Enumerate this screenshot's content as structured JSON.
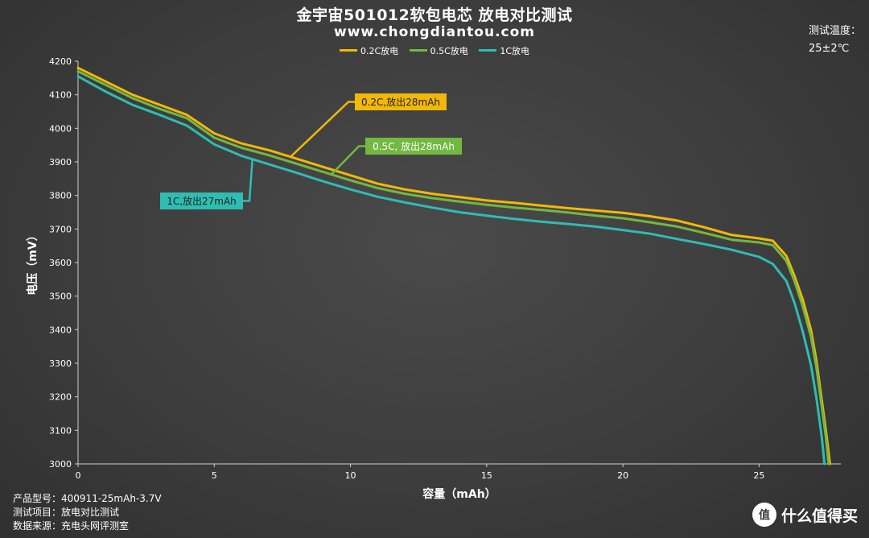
{
  "header": {
    "title": "金宇宙501012软包电芯 放电对比测试",
    "subtitle": "www.chongdiantou.com",
    "temp_label": "测试温度：",
    "temp_value": "25±2℃"
  },
  "footer": {
    "rows": [
      {
        "label": "产品型号：",
        "value": "400911-25mAh-3.7V"
      },
      {
        "label": "测试项目：",
        "value": "放电对比测试"
      },
      {
        "label": "数据来源：",
        "value": "充电头网评测室"
      }
    ],
    "watermark_badge": "值",
    "watermark_text": "什么值得买"
  },
  "chart_data": {
    "type": "line",
    "xlabel": "容量（mAh）",
    "ylabel": "电压（mV）",
    "xlim": [
      0,
      28
    ],
    "ylim": [
      3000,
      4200
    ],
    "x_ticks": [
      0,
      5,
      10,
      15,
      20,
      25
    ],
    "y_ticks": [
      3000,
      3100,
      3200,
      3300,
      3400,
      3500,
      3600,
      3700,
      3800,
      3900,
      4000,
      4100,
      4200
    ],
    "grid": false,
    "legend_position": "top-center",
    "series": [
      {
        "name": "0.2C放电",
        "color": "#f2b807",
        "points": [
          [
            0,
            4180
          ],
          [
            1,
            4140
          ],
          [
            2,
            4100
          ],
          [
            3,
            4070
          ],
          [
            4,
            4040
          ],
          [
            5,
            3985
          ],
          [
            6,
            3955
          ],
          [
            7,
            3935
          ],
          [
            8,
            3910
          ],
          [
            9,
            3885
          ],
          [
            10,
            3860
          ],
          [
            11,
            3835
          ],
          [
            12,
            3818
          ],
          [
            13,
            3805
          ],
          [
            14,
            3795
          ],
          [
            15,
            3785
          ],
          [
            16,
            3778
          ],
          [
            17,
            3770
          ],
          [
            18,
            3762
          ],
          [
            19,
            3755
          ],
          [
            20,
            3748
          ],
          [
            21,
            3738
          ],
          [
            22,
            3725
          ],
          [
            23,
            3705
          ],
          [
            24,
            3682
          ],
          [
            25,
            3672
          ],
          [
            25.5,
            3665
          ],
          [
            26,
            3620
          ],
          [
            26.3,
            3560
          ],
          [
            26.6,
            3490
          ],
          [
            26.9,
            3400
          ],
          [
            27.1,
            3310
          ],
          [
            27.3,
            3190
          ],
          [
            27.45,
            3100
          ],
          [
            27.6,
            3000
          ]
        ]
      },
      {
        "name": "0.5C放电",
        "color": "#73b841",
        "points": [
          [
            0,
            4170
          ],
          [
            1,
            4130
          ],
          [
            2,
            4090
          ],
          [
            3,
            4058
          ],
          [
            4,
            4030
          ],
          [
            5,
            3972
          ],
          [
            6,
            3942
          ],
          [
            7,
            3920
          ],
          [
            8,
            3895
          ],
          [
            9,
            3870
          ],
          [
            10,
            3845
          ],
          [
            11,
            3822
          ],
          [
            12,
            3805
          ],
          [
            13,
            3792
          ],
          [
            14,
            3782
          ],
          [
            15,
            3772
          ],
          [
            16,
            3764
          ],
          [
            17,
            3757
          ],
          [
            18,
            3749
          ],
          [
            19,
            3740
          ],
          [
            20,
            3732
          ],
          [
            21,
            3720
          ],
          [
            22,
            3707
          ],
          [
            23,
            3688
          ],
          [
            24,
            3668
          ],
          [
            25,
            3660
          ],
          [
            25.5,
            3652
          ],
          [
            26,
            3605
          ],
          [
            26.3,
            3545
          ],
          [
            26.6,
            3470
          ],
          [
            26.9,
            3380
          ],
          [
            27.1,
            3290
          ],
          [
            27.3,
            3170
          ],
          [
            27.45,
            3080
          ],
          [
            27.55,
            3000
          ]
        ]
      },
      {
        "name": "1C放电",
        "color": "#2ebdb3",
        "points": [
          [
            0,
            4155
          ],
          [
            1,
            4110
          ],
          [
            2,
            4070
          ],
          [
            3,
            4040
          ],
          [
            4,
            4008
          ],
          [
            5,
            3952
          ],
          [
            6,
            3918
          ],
          [
            7,
            3893
          ],
          [
            8,
            3868
          ],
          [
            9,
            3842
          ],
          [
            10,
            3818
          ],
          [
            11,
            3796
          ],
          [
            12,
            3779
          ],
          [
            13,
            3764
          ],
          [
            14,
            3750
          ],
          [
            15,
            3740
          ],
          [
            16,
            3730
          ],
          [
            17,
            3722
          ],
          [
            18,
            3715
          ],
          [
            19,
            3707
          ],
          [
            20,
            3697
          ],
          [
            21,
            3686
          ],
          [
            22,
            3670
          ],
          [
            23,
            3655
          ],
          [
            24,
            3638
          ],
          [
            25,
            3617
          ],
          [
            25.5,
            3596
          ],
          [
            26,
            3545
          ],
          [
            26.3,
            3480
          ],
          [
            26.6,
            3395
          ],
          [
            26.9,
            3295
          ],
          [
            27.1,
            3200
          ],
          [
            27.3,
            3080
          ],
          [
            27.4,
            3000
          ]
        ]
      }
    ],
    "annotations": [
      {
        "text": "0.2C,放出28mAh",
        "bg": "#f2b807",
        "fg": "#222222",
        "series": 0,
        "x_anchor": 7.8
      },
      {
        "text": "0.5C, 放出28mAh",
        "bg": "#73b841",
        "fg": "#ffffff",
        "series": 1,
        "x_anchor": 9.3
      },
      {
        "text": "1C,放出27mAh",
        "bg": "#2ebdb3",
        "fg": "#222222",
        "series": 2,
        "x_anchor": 6.4
      }
    ]
  }
}
